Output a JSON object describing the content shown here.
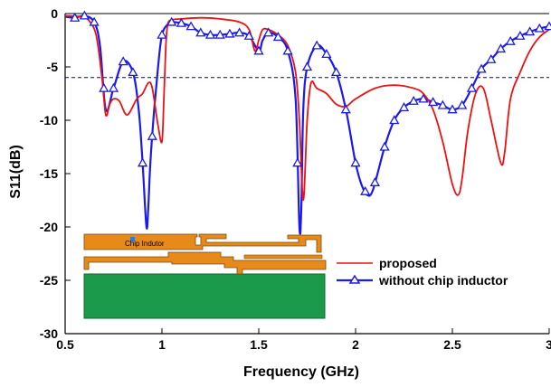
{
  "chart_data": {
    "type": "line",
    "title": "",
    "xlabel": "Frequency (GHz)",
    "ylabel": "S11(dB)",
    "xlim": [
      0.5,
      3.0
    ],
    "ylim": [
      -30,
      0
    ],
    "xticks": [
      0.5,
      1,
      1.5,
      2,
      2.5,
      3
    ],
    "xtick_labels": [
      "0.5",
      "1",
      "1.5",
      "2",
      "2.5",
      "3"
    ],
    "yticks": [
      0,
      -5,
      -10,
      -15,
      -20,
      -25,
      -30
    ],
    "ytick_labels": [
      "0",
      "-5",
      "-10",
      "-15",
      "-20",
      "-25",
      "-30"
    ],
    "grid": false,
    "legend_position": "lower-right",
    "reference_line": {
      "y": -6,
      "style": "dashed",
      "color": "#0000aa"
    },
    "colors": {
      "proposed": "#ee1111",
      "without": "#1a1aee",
      "inset_trace": "#e88a1a",
      "inset_ground": "#1a9a4a"
    },
    "series": [
      {
        "name": "proposed",
        "color": "#ee1111",
        "marker": "none",
        "x": [
          0.5,
          0.58,
          0.62,
          0.66,
          0.69,
          0.71,
          0.73,
          0.75,
          0.78,
          0.82,
          0.87,
          0.9,
          0.93,
          0.95,
          0.98,
          1.0,
          1.01,
          1.02,
          1.03,
          1.05,
          1.1,
          1.2,
          1.3,
          1.4,
          1.45,
          1.48,
          1.5,
          1.52,
          1.55,
          1.6,
          1.65,
          1.69,
          1.71,
          1.73,
          1.75,
          1.77,
          1.8,
          1.85,
          1.9,
          1.95,
          2.0,
          2.1,
          2.2,
          2.3,
          2.35,
          2.4,
          2.45,
          2.5,
          2.53,
          2.55,
          2.58,
          2.62,
          2.66,
          2.7,
          2.75,
          2.77,
          2.8,
          2.85,
          2.9,
          2.95,
          3.0
        ],
        "y": [
          -0.2,
          -0.3,
          -0.6,
          -2.0,
          -6.0,
          -9.5,
          -8.5,
          -8.0,
          -8.2,
          -9.5,
          -8.0,
          -7.5,
          -6.5,
          -7.0,
          -10.5,
          -12.0,
          -8.0,
          -3.0,
          -1.0,
          -0.6,
          -0.5,
          -0.4,
          -0.5,
          -0.8,
          -1.5,
          -3.5,
          -2.5,
          -1.5,
          -1.5,
          -2.0,
          -3.0,
          -5.5,
          -10.0,
          -17.5,
          -10.0,
          -6.5,
          -7.0,
          -7.5,
          -8.5,
          -8.7,
          -8.0,
          -7.0,
          -6.7,
          -7.0,
          -7.5,
          -9.0,
          -12.0,
          -16.0,
          -17.0,
          -15.5,
          -11.0,
          -7.5,
          -7.0,
          -10.0,
          -14.0,
          -13.0,
          -8.0,
          -5.5,
          -3.5,
          -2.2,
          -1.5
        ]
      },
      {
        "name": "without chip inductor",
        "color": "#1a1aee",
        "marker": "triangle",
        "x": [
          0.5,
          0.55,
          0.6,
          0.65,
          0.68,
          0.71,
          0.75,
          0.8,
          0.85,
          0.88,
          0.9,
          0.92,
          0.93,
          0.94,
          0.96,
          0.98,
          1.0,
          1.03,
          1.05,
          1.1,
          1.15,
          1.2,
          1.25,
          1.3,
          1.35,
          1.4,
          1.45,
          1.5,
          1.52,
          1.55,
          1.6,
          1.65,
          1.69,
          1.71,
          1.72,
          1.73,
          1.75,
          1.8,
          1.85,
          1.9,
          1.95,
          2.0,
          2.03,
          2.06,
          2.09,
          2.15,
          2.2,
          2.25,
          2.3,
          2.35,
          2.4,
          2.45,
          2.5,
          2.55,
          2.6,
          2.65,
          2.7,
          2.75,
          2.8,
          2.85,
          2.9,
          2.95,
          3.0
        ],
        "y": [
          -0.3,
          -0.4,
          -0.2,
          -0.8,
          -3.0,
          -9.0,
          -7.0,
          -4.5,
          -5.5,
          -9.0,
          -14.0,
          -20.0,
          -18.0,
          -14.0,
          -9.0,
          -5.0,
          -2.0,
          -1.0,
          -0.8,
          -0.9,
          -1.2,
          -1.8,
          -2.0,
          -2.0,
          -1.9,
          -1.8,
          -2.1,
          -3.5,
          -2.5,
          -1.8,
          -2.2,
          -3.5,
          -8.0,
          -20.0,
          -18.0,
          -9.0,
          -5.0,
          -3.0,
          -3.8,
          -5.5,
          -9.0,
          -14.0,
          -16.0,
          -17.0,
          -16.5,
          -12.5,
          -10.0,
          -8.8,
          -8.2,
          -8.0,
          -8.3,
          -8.6,
          -9.0,
          -8.6,
          -7.0,
          -5.2,
          -4.3,
          -3.3,
          -2.6,
          -2.1,
          -1.7,
          -1.4,
          -1.2
        ]
      }
    ],
    "inset": {
      "label": "Chip Indutor"
    }
  }
}
